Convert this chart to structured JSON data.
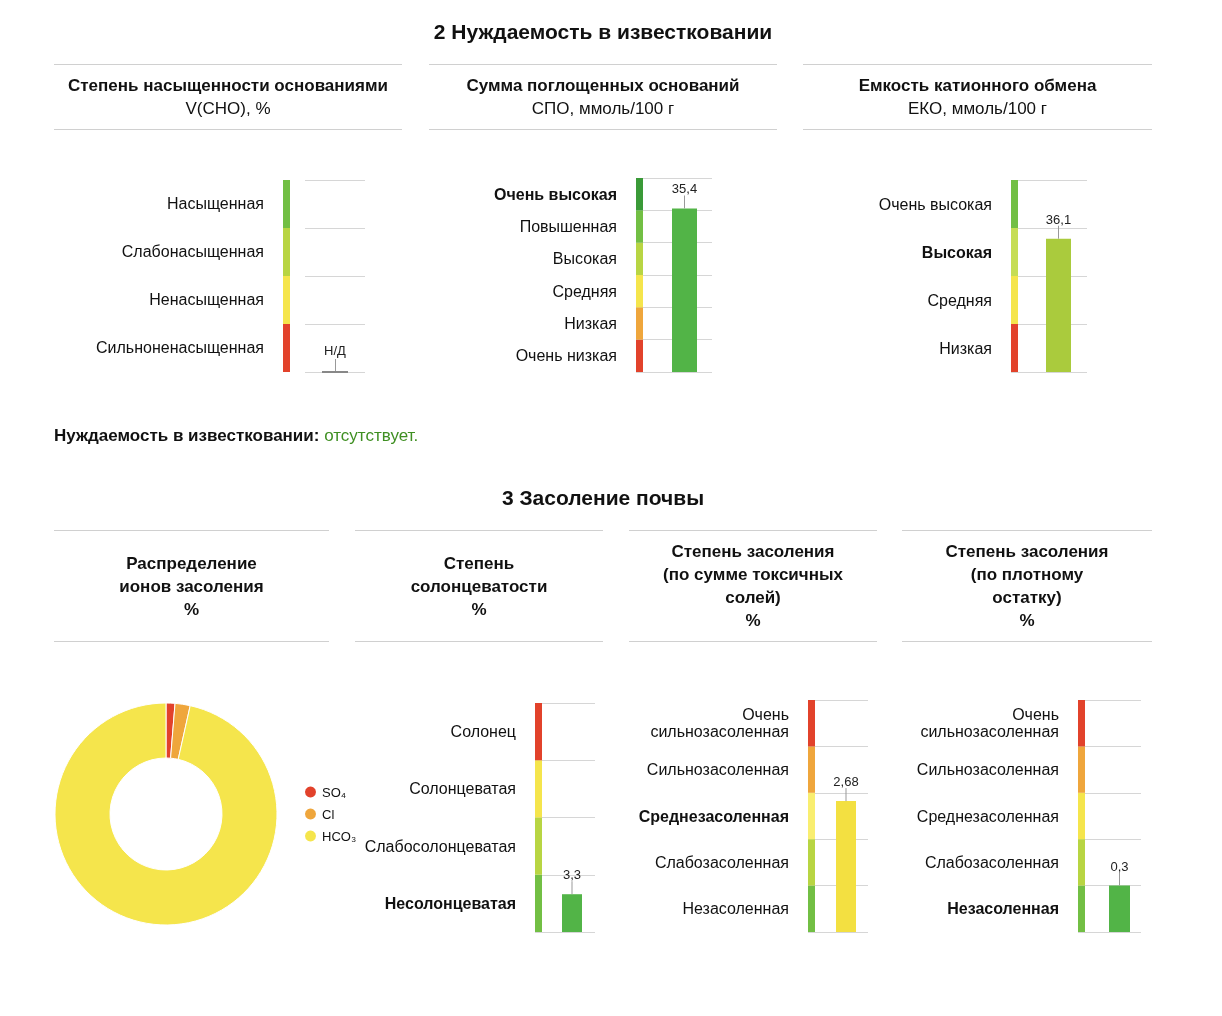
{
  "chart_data": [
    {
      "type": "other",
      "title": "Степень насыщенности основаниями",
      "subtitle": "V(СНО), %",
      "annotations": [
        "Насыщенная",
        "Слабонасыщенная",
        "Ненасыщенная",
        "Сильноненасыщенная",
        "Н/Д"
      ]
    },
    {
      "type": "bar",
      "title": "Сумма поглощенных оснований",
      "subtitle": "СПО, ммоль/100 г",
      "categories": [
        null
      ],
      "values": [
        35.4
      ],
      "value_labels": [
        "35,4"
      ],
      "color": "#52b447",
      "ylim": [
        0,
        42
      ],
      "yticks": [
        {
          "value": 0,
          "label": null
        },
        {
          "value": 7,
          "label": null
        },
        {
          "value": 14,
          "label": null
        },
        {
          "value": 21,
          "label": null
        },
        {
          "value": 28,
          "label": null
        },
        {
          "value": 35,
          "label": null
        },
        {
          "value": 42,
          "label": null
        }
      ],
      "grid": "y",
      "bands": [
        {
          "axis": "y",
          "from": 0,
          "to": 7,
          "label": "Очень низкая",
          "color": "#e2422b"
        },
        {
          "axis": "y",
          "from": 7,
          "to": 14,
          "label": "Низкая",
          "color": "#efa63c"
        },
        {
          "axis": "y",
          "from": 14,
          "to": 21,
          "label": "Средняя",
          "color": "#f5e54c"
        },
        {
          "axis": "y",
          "from": 21,
          "to": 28,
          "label": "Высокая",
          "color": "#b8d543"
        },
        {
          "axis": "y",
          "from": 28,
          "to": 35,
          "label": "Повышенная",
          "color": "#72bf44"
        },
        {
          "axis": "y",
          "from": 35,
          "to": 42,
          "label": "Очень высокая",
          "color": "#3a9a38"
        }
      ],
      "annotations": [
        "2 Нуждаемость в известковании",
        "Нуждаемость в известковании:",
        "отсутствует."
      ]
    },
    {
      "type": "bar",
      "title": "Емкость катионного обмена",
      "subtitle": "ЕКО, ммоль/100 г",
      "categories": [
        null
      ],
      "values": [
        36.1
      ],
      "value_labels": [
        "36,1"
      ],
      "color": "#aacb3d",
      "ylim": [
        0,
        52
      ],
      "yticks": [
        {
          "value": 0,
          "label": null
        },
        {
          "value": 13,
          "label": null
        },
        {
          "value": 26,
          "label": null
        },
        {
          "value": 39,
          "label": null
        },
        {
          "value": 52,
          "label": null
        }
      ],
      "grid": "y",
      "bands": [
        {
          "axis": "y",
          "from": 0,
          "to": 13,
          "label": "Низкая",
          "color": "#e2422b"
        },
        {
          "axis": "y",
          "from": 13,
          "to": 26,
          "label": "Средняя",
          "color": "#f5e54c"
        },
        {
          "axis": "y",
          "from": 26,
          "to": 39,
          "label": "Высокая",
          "color": "#c6dd55"
        },
        {
          "axis": "y",
          "from": 39,
          "to": 52,
          "label": "Очень высокая",
          "color": "#72bf44"
        }
      ]
    },
    {
      "type": "donut",
      "title": "Распределение ионов засоления",
      "subtitle": "%",
      "categories": [
        "SO₄",
        "Cl",
        "HCO₃"
      ],
      "values": [
        1.3,
        2.2,
        96.5
      ],
      "colors": [
        "#e2422b",
        "#efa63c",
        "#f5e54c"
      ],
      "legend": "right",
      "annotations": [
        "3 Засоление почвы"
      ]
    },
    {
      "type": "bar",
      "title": "Степень солонцеватости",
      "subtitle": "%",
      "categories": [
        null
      ],
      "values": [
        3.3
      ],
      "value_labels": [
        "3,3"
      ],
      "color": "#52b447",
      "ylim": [
        0,
        20
      ],
      "yticks": [
        {
          "value": 0,
          "label": null
        },
        {
          "value": 5,
          "label": null
        },
        {
          "value": 10,
          "label": null
        },
        {
          "value": 15,
          "label": null
        },
        {
          "value": 20,
          "label": null
        }
      ],
      "grid": "y",
      "bands": [
        {
          "axis": "y",
          "from": 0,
          "to": 5,
          "label": "Несолонцеватая",
          "color": "#72bf44"
        },
        {
          "axis": "y",
          "from": 5,
          "to": 10,
          "label": "Слабосолонцеватая",
          "color": "#b8d543"
        },
        {
          "axis": "y",
          "from": 10,
          "to": 15,
          "label": "Солонцеватая",
          "color": "#f5e54c"
        },
        {
          "axis": "y",
          "from": 15,
          "to": 20,
          "label": "Солонец",
          "color": "#e2422b"
        }
      ]
    },
    {
      "type": "bar",
      "title": "Степень засоления (по сумме токсичных солей)",
      "subtitle": "%",
      "categories": [
        null
      ],
      "values": [
        2.68
      ],
      "value_labels": [
        "2,68"
      ],
      "color": "#f3e041",
      "ylim": [
        0,
        4.75
      ],
      "yticks": [
        {
          "value": 0,
          "label": null
        },
        {
          "value": 0.95,
          "label": null
        },
        {
          "value": 1.9,
          "label": null
        },
        {
          "value": 2.85,
          "label": null
        },
        {
          "value": 3.8,
          "label": null
        },
        {
          "value": 4.75,
          "label": null
        }
      ],
      "grid": "y",
      "bands": [
        {
          "axis": "y",
          "from": 0,
          "to": 0.95,
          "label": "Незасоленная",
          "color": "#72bf44"
        },
        {
          "axis": "y",
          "from": 0.95,
          "to": 1.9,
          "label": "Слабозасоленная",
          "color": "#b8d543"
        },
        {
          "axis": "y",
          "from": 1.9,
          "to": 2.85,
          "label": "Среднезасоленная",
          "color": "#f9ee70"
        },
        {
          "axis": "y",
          "from": 2.85,
          "to": 3.8,
          "label": "Сильнозасоленная",
          "color": "#efa63c"
        },
        {
          "axis": "y",
          "from": 3.8,
          "to": 4.75,
          "label": "Очень сильнозасоленная",
          "color": "#e2422b"
        }
      ]
    },
    {
      "type": "bar",
      "title": "Степень засоления (по плотному остатку)",
      "subtitle": "%",
      "categories": [
        null
      ],
      "values": [
        0.3
      ],
      "value_labels": [
        "0,3"
      ],
      "color": "#52b447",
      "ylim": [
        0,
        1.5
      ],
      "yticks": [
        {
          "value": 0,
          "label": null
        },
        {
          "value": 0.3,
          "label": null
        },
        {
          "value": 0.6,
          "label": null
        },
        {
          "value": 0.9,
          "label": null
        },
        {
          "value": 1.2,
          "label": null
        },
        {
          "value": 1.5,
          "label": null
        }
      ],
      "grid": "y",
      "bands": [
        {
          "axis": "y",
          "from": 0,
          "to": 0.3,
          "label": "Незасоленная",
          "color": "#72bf44"
        },
        {
          "axis": "y",
          "from": 0.3,
          "to": 0.6,
          "label": "Слабозасоленная",
          "color": "#b8d543"
        },
        {
          "axis": "y",
          "from": 0.6,
          "to": 0.9,
          "label": "Среднезасоленная",
          "color": "#f5e54c"
        },
        {
          "axis": "y",
          "from": 0.9,
          "to": 1.2,
          "label": "Сильнозасоленная",
          "color": "#efa63c"
        },
        {
          "axis": "y",
          "from": 1.2,
          "to": 1.5,
          "label": "Очень сильнозасоленная",
          "color": "#e2422b"
        }
      ]
    }
  ]
}
